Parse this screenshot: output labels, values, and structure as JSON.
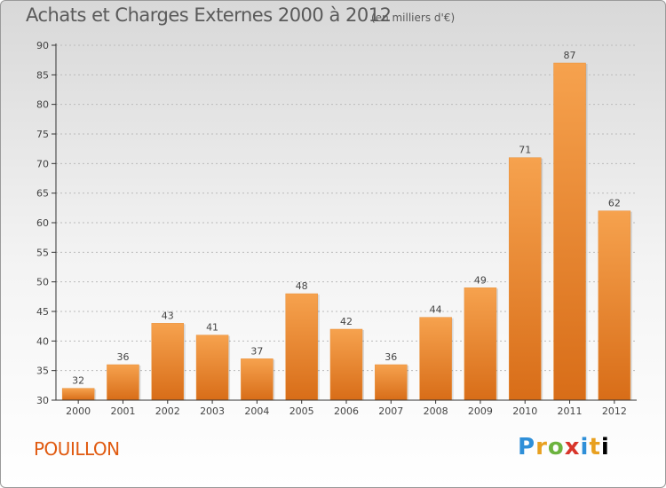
{
  "header": {
    "title": "Achats et Charges Externes 2000 à 2012",
    "unit": "(en milliers d'€)"
  },
  "footer": {
    "commune": "POUILLON",
    "logo_text": "Proxiti"
  },
  "colors": {
    "bar_light": "#f6a24e",
    "bar_dark": "#d86d18",
    "axis": "#333333",
    "grid": "#bbbbbb",
    "commune": "#e05a10"
  },
  "chart_data": {
    "type": "bar",
    "title": "Achats et Charges Externes 2000 à 2012",
    "subtitle": "(en milliers d'€)",
    "categories": [
      "2000",
      "2001",
      "2002",
      "2003",
      "2004",
      "2005",
      "2006",
      "2007",
      "2008",
      "2009",
      "2010",
      "2011",
      "2012"
    ],
    "values": [
      32,
      36,
      43,
      41,
      37,
      48,
      42,
      36,
      44,
      49,
      71,
      87,
      62
    ],
    "ylim": [
      30,
      90
    ],
    "yticks": [
      30,
      35,
      40,
      45,
      50,
      55,
      60,
      65,
      70,
      75,
      80,
      85,
      90
    ],
    "grid": true,
    "gridline_style": "dashed-horizontal",
    "data_labels": true
  }
}
